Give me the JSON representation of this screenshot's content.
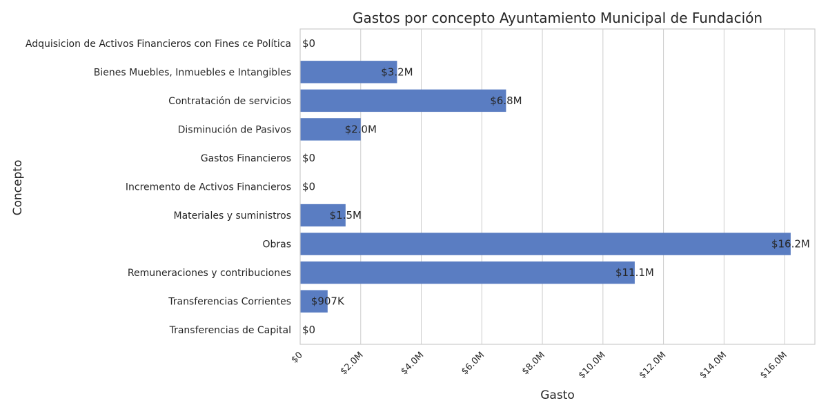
{
  "chart_data": {
    "type": "bar",
    "orientation": "horizontal",
    "title": "Gastos por concepto Ayuntamiento Municipal de Fundación",
    "xlabel": "Gasto",
    "ylabel": "Concepto",
    "categories": [
      "Adquisicion de Activos Financieros con Fines ce Política",
      "Bienes Muebles, Inmuebles e Intangibles",
      "Contratación de servicios",
      "Disminución de Pasivos",
      "Gastos Financieros",
      "Incremento de Activos Financieros",
      "Materiales y suministros",
      "Obras",
      "Remuneraciones y contribuciones",
      "Transferencias Corrientes",
      "Transferencias de Capital"
    ],
    "values": [
      0,
      3200000,
      6800000,
      2000000,
      0,
      0,
      1500000,
      16200000,
      11050000,
      907000,
      0
    ],
    "data_labels": [
      "$0",
      "$3.2M",
      "$6.8M",
      "$2.0M",
      "$0",
      "$0",
      "$1.5M",
      "$16.2M",
      "$11.1M",
      "$907K",
      "$0"
    ],
    "xlim": [
      0,
      17000000
    ],
    "x_ticks": [
      0,
      2000000,
      4000000,
      6000000,
      8000000,
      10000000,
      12000000,
      14000000,
      16000000
    ],
    "x_tick_labels": [
      "$0",
      "$2.0M",
      "$4.0M",
      "$6.0M",
      "$8.0M",
      "$10.0M",
      "$12.0M",
      "$14.0M",
      "$16.0M"
    ],
    "grid": "vertical",
    "legend": "none",
    "bar_color": "#5a7dc2"
  }
}
